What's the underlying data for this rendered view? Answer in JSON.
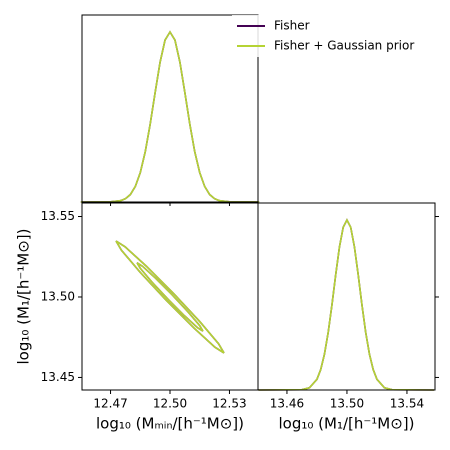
{
  "chart_data": [
    {
      "type": "density",
      "xlim": [
        12.4556,
        12.5444
      ],
      "ylim": [
        0,
        1.1
      ],
      "xticks": [
        12.47,
        {
          "value": 12.5,
          "label": "12.50"
        },
        12.53
      ],
      "series": [
        {
          "name": "Fisher",
          "color": "#440154",
          "x": [
            12.455,
            12.47,
            12.475,
            12.4775,
            12.48,
            12.4825,
            12.485,
            12.4875,
            12.49,
            12.4925,
            12.495,
            12.4975,
            12.5,
            12.5025,
            12.505,
            12.5075,
            12.51,
            12.5125,
            12.515,
            12.5175,
            12.52,
            12.5225,
            12.525,
            12.53,
            12.545
          ],
          "values": [
            0,
            0.0009,
            0.0076,
            0.0192,
            0.0439,
            0.0914,
            0.1724,
            0.295,
            0.4578,
            0.6444,
            0.8226,
            0.9523,
            1,
            0.9523,
            0.8226,
            0.6444,
            0.4578,
            0.295,
            0.1724,
            0.0914,
            0.0439,
            0.0192,
            0.0076,
            0.0009,
            0
          ]
        },
        {
          "name": "Fisher + Gaussian prior",
          "color": "#b5d334",
          "x": [
            12.455,
            12.47,
            12.475,
            12.4775,
            12.48,
            12.4825,
            12.485,
            12.4875,
            12.49,
            12.4925,
            12.495,
            12.4975,
            12.5,
            12.5025,
            12.505,
            12.5075,
            12.51,
            12.5125,
            12.515,
            12.5175,
            12.52,
            12.5225,
            12.525,
            12.53,
            12.545
          ],
          "values": [
            0,
            0.0009,
            0.0076,
            0.0192,
            0.0439,
            0.0914,
            0.1724,
            0.295,
            0.4578,
            0.6444,
            0.8226,
            0.9523,
            1,
            0.9523,
            0.8226,
            0.6444,
            0.4578,
            0.295,
            0.1724,
            0.0914,
            0.0439,
            0.0192,
            0.0076,
            0.0009,
            0
          ]
        }
      ]
    },
    {
      "type": "contour",
      "xlim": [
        12.4556,
        12.5444
      ],
      "ylim": [
        13.4422,
        13.5584
      ],
      "xticks": [
        12.47,
        {
          "value": 12.5,
          "label": "12.50"
        },
        12.53
      ],
      "yticks": [
        13.45,
        {
          "value": 13.5,
          "label": "13.50"
        },
        13.55
      ],
      "xlabel": "log₁₀ (Mₘᵢₙ/[h⁻¹M⊙])",
      "ylabel": "log₁₀ (M₁/[h⁻¹M⊙])",
      "series": [
        {
          "color": "#440154",
          "contours": [
            {
              "x": [
                12.51661,
                12.51383,
                12.50735,
                12.49889,
                12.49074,
                12.48507,
                12.48339,
                12.48617,
                12.49265,
                12.50111,
                12.50926,
                12.51493
              ],
              "y": [
                13.47878,
                13.48096,
                13.48825,
                13.49869,
                13.50947,
                13.51772,
                13.52122,
                13.51904,
                13.51175,
                13.50131,
                13.49053,
                13.48228
              ]
            },
            {
              "x": [
                12.52723,
                12.52267,
                12.51204,
                12.49819,
                12.48481,
                12.47551,
                12.47277,
                12.47733,
                12.48796,
                12.50182,
                12.51519,
                12.52449
              ],
              "y": [
                13.46522,
                13.4688,
                13.48074,
                13.49785,
                13.51552,
                13.52904,
                13.53478,
                13.5312,
                13.51926,
                13.50216,
                13.48448,
                13.47096
              ]
            }
          ]
        },
        {
          "color": "#b5d334",
          "contours": [
            {
              "x": [
                12.51661,
                12.51383,
                12.50735,
                12.49889,
                12.49074,
                12.48507,
                12.48339,
                12.48617,
                12.49265,
                12.50111,
                12.50926,
                12.51493
              ],
              "y": [
                13.47878,
                13.48096,
                13.48825,
                13.49869,
                13.50947,
                13.51772,
                13.52122,
                13.51904,
                13.51175,
                13.50131,
                13.49053,
                13.48228
              ]
            },
            {
              "x": [
                12.52723,
                12.52267,
                12.51204,
                12.49819,
                12.48481,
                12.47551,
                12.47277,
                12.47733,
                12.48796,
                12.50182,
                12.51519,
                12.52449
              ],
              "y": [
                13.46522,
                13.4688,
                13.48074,
                13.49785,
                13.51552,
                13.52904,
                13.53478,
                13.5312,
                13.51926,
                13.50216,
                13.48448,
                13.47096
              ]
            }
          ]
        }
      ]
    },
    {
      "type": "density",
      "xlim": [
        13.4407,
        13.5587
      ],
      "ylim": [
        0,
        1.1
      ],
      "xticks": [
        13.46,
        {
          "value": 13.5,
          "label": "13.50"
        },
        13.54
      ],
      "yticks": [
        13.45,
        13.5,
        13.55
      ],
      "y_tick_lim": [
        13.4422,
        13.5584
      ],
      "xlabel": "log₁₀ (M₁/[h⁻¹M⊙])",
      "series": [
        {
          "color": "#440154",
          "x": [
            13.441,
            13.47,
            13.475,
            13.48,
            13.4825,
            13.485,
            13.4875,
            13.49,
            13.4925,
            13.495,
            13.4975,
            13.5,
            13.5025,
            13.505,
            13.5075,
            13.51,
            13.5125,
            13.515,
            13.5175,
            13.52,
            13.525,
            13.53,
            13.558
          ],
          "values": [
            0,
            0.002,
            0.0132,
            0.0628,
            0.1201,
            0.2108,
            0.3392,
            0.5006,
            0.6777,
            0.8412,
            0.9576,
            1,
            0.9576,
            0.8412,
            0.6777,
            0.5006,
            0.3392,
            0.2108,
            0.1201,
            0.0628,
            0.0132,
            0.002,
            0
          ]
        },
        {
          "color": "#b5d334",
          "x": [
            13.441,
            13.47,
            13.475,
            13.48,
            13.4825,
            13.485,
            13.4875,
            13.49,
            13.4925,
            13.495,
            13.4975,
            13.5,
            13.5025,
            13.505,
            13.5075,
            13.51,
            13.5125,
            13.515,
            13.5175,
            13.52,
            13.525,
            13.53,
            13.558
          ],
          "values": [
            0,
            0.002,
            0.0132,
            0.0628,
            0.1201,
            0.2108,
            0.3392,
            0.5006,
            0.6777,
            0.8412,
            0.9576,
            1,
            0.9576,
            0.8412,
            0.6777,
            0.5006,
            0.3392,
            0.2108,
            0.1201,
            0.0628,
            0.0132,
            0.002,
            0
          ]
        }
      ]
    }
  ]
}
